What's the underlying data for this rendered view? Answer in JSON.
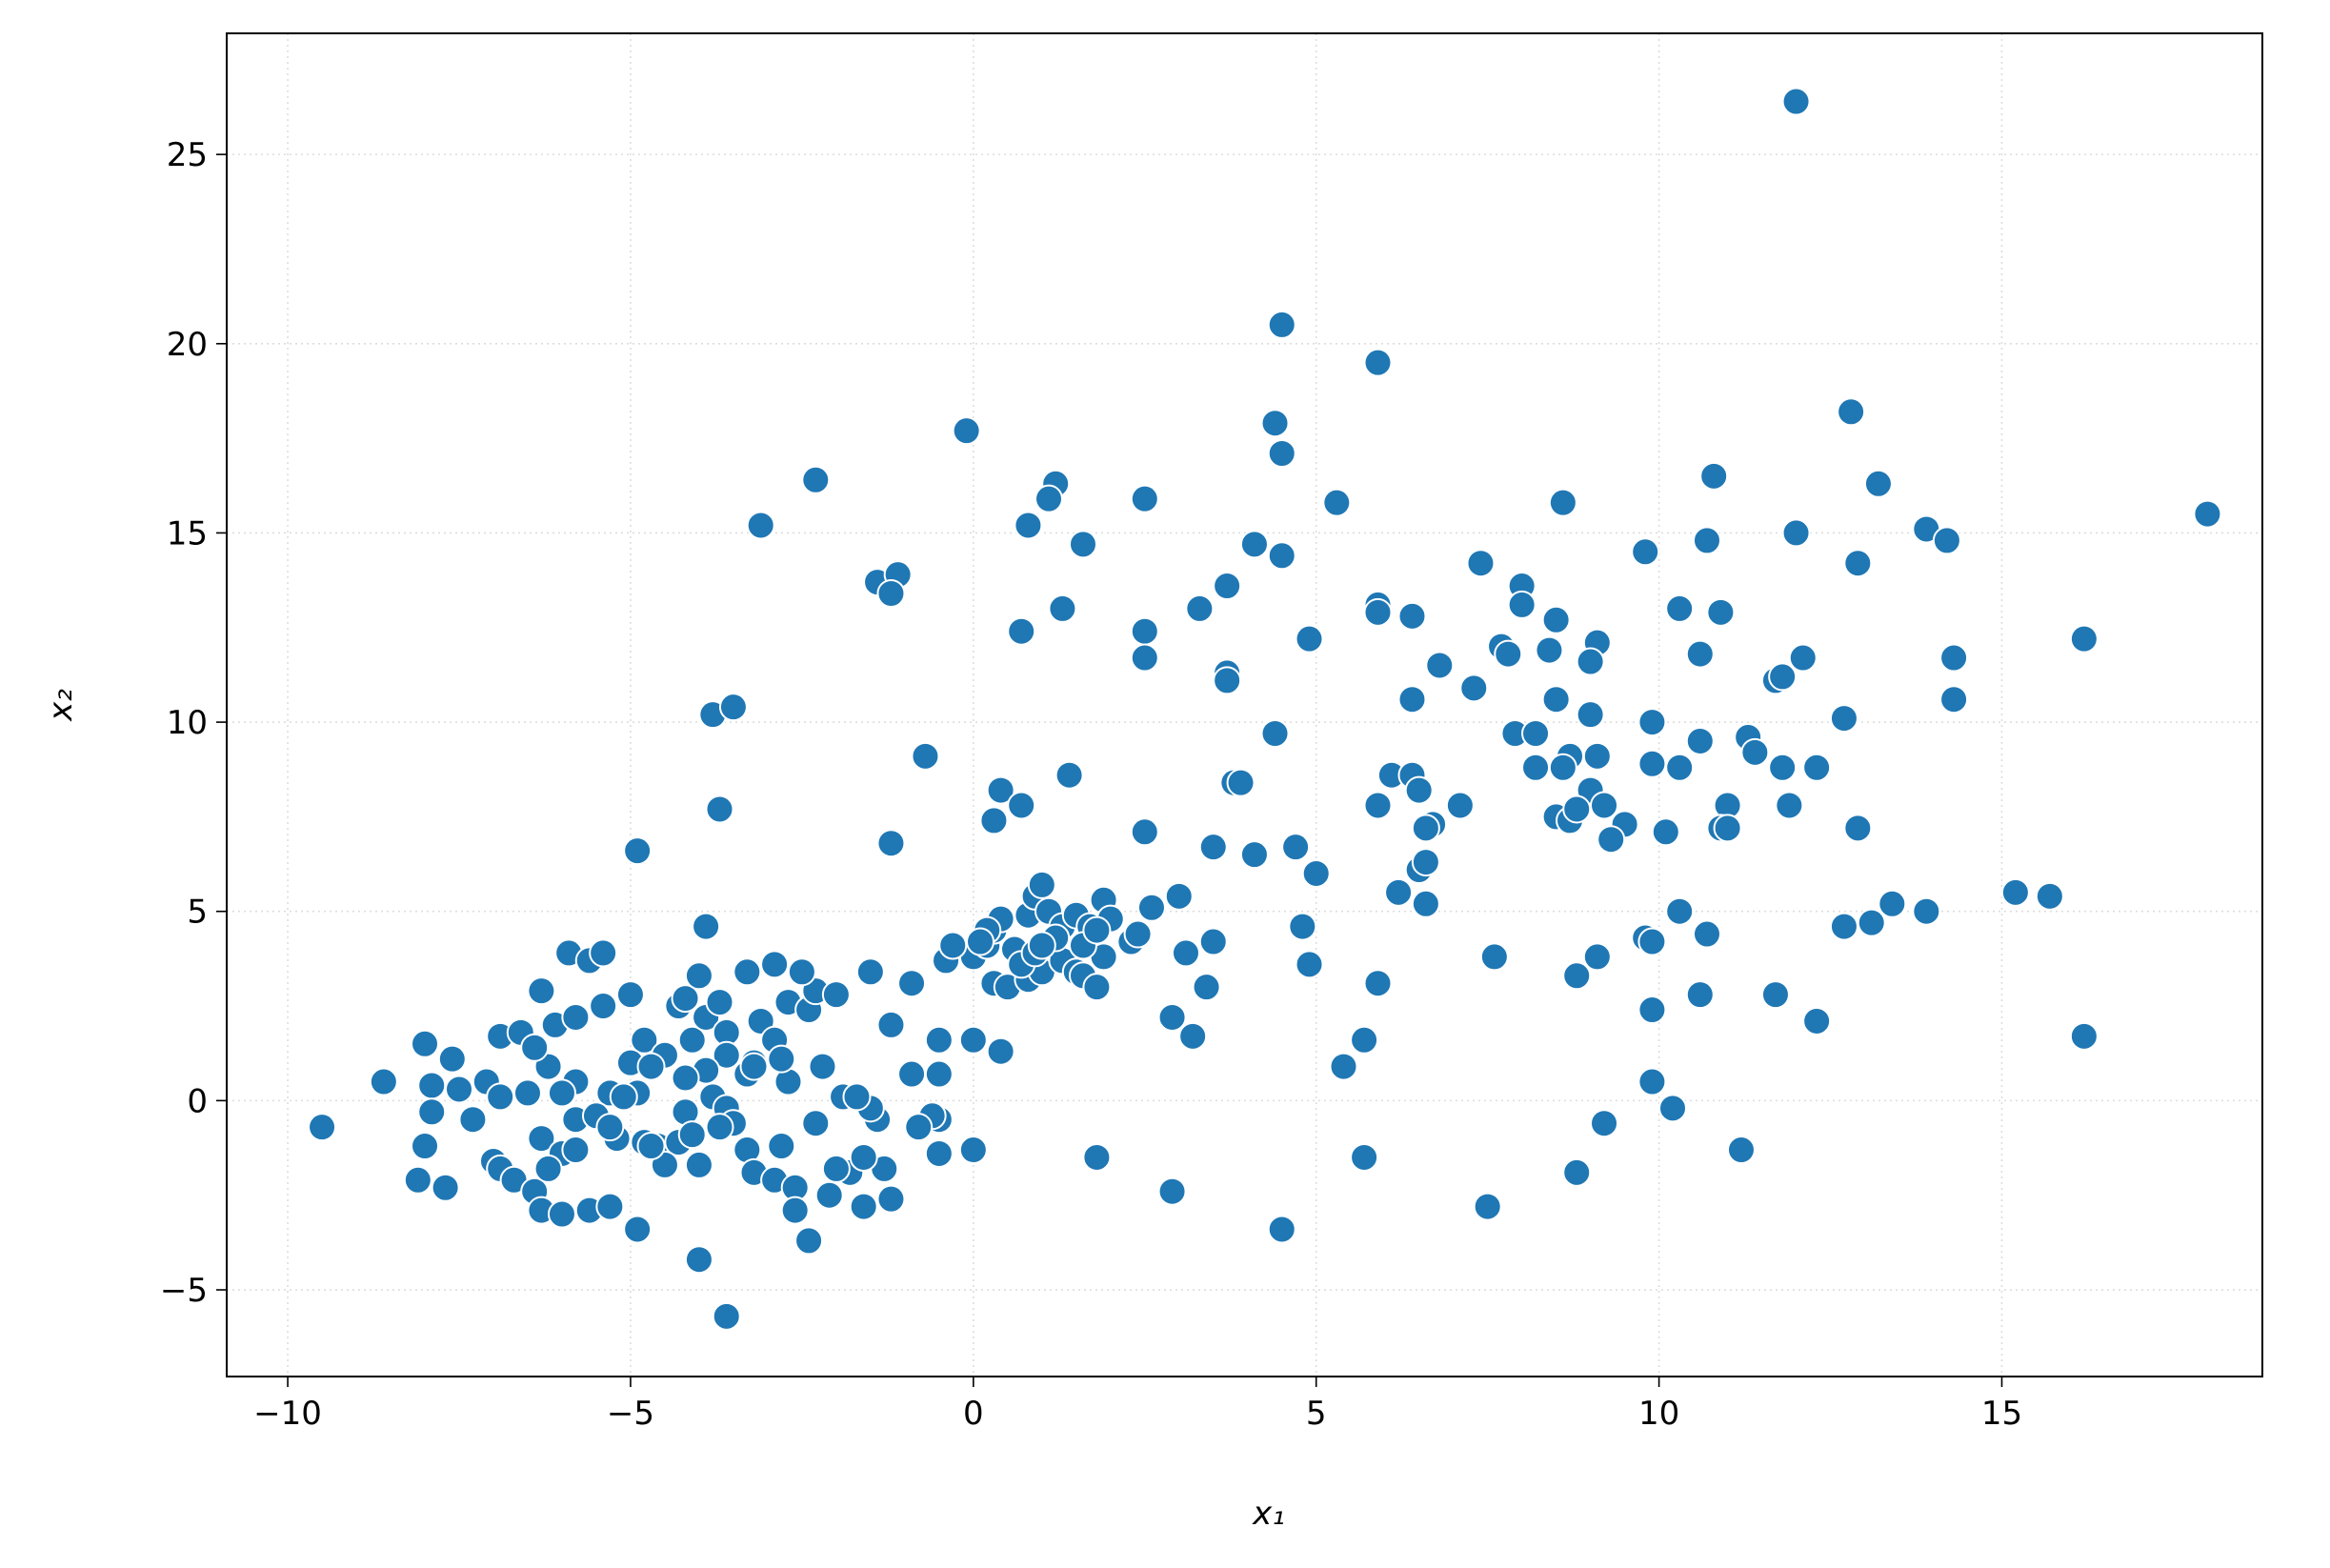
{
  "chart_data": {
    "type": "scatter",
    "x_label": "x₁",
    "y_label": "x₂",
    "color": "#1f77b4",
    "edge_color": "#ffffff",
    "grid": true,
    "xlim": [
      -10.89,
      18.8
    ],
    "ylim": [
      -7.29,
      28.2
    ],
    "xticks": [
      {
        "value": -10,
        "label": "−10"
      },
      {
        "value": -5,
        "label": "−5"
      },
      0,
      5,
      10,
      15
    ],
    "yticks": [
      {
        "value": -5,
        "label": "−5"
      },
      0,
      5,
      10,
      15,
      20,
      25
    ],
    "x": [
      12.0,
      4.5,
      5.9,
      -0.1,
      4.4,
      4.5,
      12.8,
      -2.3,
      1.2,
      1.1,
      10.8,
      13.2,
      -3.1,
      0.8,
      2.5,
      5.3,
      8.6,
      13.9,
      14.2,
      12.0,
      10.7,
      9.8,
      18.0,
      1.6,
      4.1,
      4.5,
      7.4,
      12.9,
      -1.4,
      -1.1,
      -1.2,
      3.7,
      8.0,
      8.0,
      1.3,
      3.3,
      5.9,
      5.9,
      6.4,
      8.5,
      10.3,
      10.9,
      0.7,
      2.5,
      4.9,
      9.1,
      16.2,
      7.7,
      7.8,
      8.4,
      9.0,
      10.6,
      12.1,
      14.3,
      2.5,
      3.7,
      3.7,
      6.8,
      11.7,
      11.8,
      6.4,
      7.3,
      8.5,
      14.3,
      -3.8,
      -3.5,
      12.7,
      9.0,
      9.9,
      4.4,
      7.9,
      8.2,
      8.7,
      9.1,
      10.6,
      11.3,
      11.4,
      -0.7,
      1.4,
      6.1,
      6.4,
      8.2,
      8.6,
      9.9,
      10.3,
      11.8,
      12.3,
      0.4,
      3.8,
      3.9,
      6.5,
      9.0,
      9.2,
      11.0,
      0.7,
      5.9,
      7.1,
      11.9,
      -3.7,
      0.3,
      2.5,
      6.7,
      6.6,
      8.5,
      8.7,
      8.8,
      9.5,
      10.1,
      10.9,
      11.0,
      12.9,
      9.3,
      3.5,
      4.1,
      4.7,
      -4.9,
      -1.2,
      6.5,
      6.6,
      5.0,
      15.2,
      15.7,
      6.2,
      6.6,
      3.0,
      2.6,
      10.3,
      13.4,
      13.9,
      13.1,
      12.7,
      4.8,
      9.8,
      9.9,
      10.7,
      3.5,
      3.1,
      7.6,
      9.1,
      4.9,
      8.8,
      3.4,
      5.9,
      10.6,
      11.7,
      9.9,
      12.3,
      2.9,
      3.2,
      5.7,
      16.2,
      5.4,
      9.9,
      10.2,
      9.2,
      11.2,
      5.7,
      1.8,
      8.8,
      2.9,
      7.5,
      4.5,
      0.0,
      0.0,
      0.2,
      0.3,
      0.4,
      0.6,
      0.8,
      0.9,
      1.0,
      1.1,
      1.3,
      1.5,
      1.7,
      1.9,
      2.0,
      2.3,
      2.4,
      0.3,
      0.5,
      0.8,
      1.0,
      1.3,
      1.5,
      1.6,
      1.8,
      1.9,
      0.7,
      0.9,
      1.2,
      1.6,
      1.8,
      -0.4,
      -0.3,
      0.2,
      1.0,
      0.1,
      -9.5,
      -8.6,
      -8.0,
      -7.9,
      -7.9,
      -8.0,
      -8.1,
      -7.7,
      -7.6,
      -7.5,
      -7.3,
      -7.1,
      -6.9,
      -6.6,
      -6.9,
      -7.0,
      -6.9,
      -6.7,
      -6.4,
      -6.3,
      -6.0,
      -5.6,
      -5.3,
      -4.9,
      -6.3,
      -6.1,
      -5.9,
      -5.6,
      -5.4,
      -5.8,
      -5.4,
      -5.0,
      -4.8,
      -5.0,
      -5.3,
      -5.8,
      -6.2,
      -6.4,
      -6.5,
      -6.0,
      -5.8,
      -5.5,
      -5.2,
      -4.8,
      -4.6,
      -4.3,
      -6.3,
      -6.0,
      -6.2,
      -5.8,
      -4.9,
      -5.1,
      -4.5,
      -4.7,
      -4.3,
      -4.2,
      -4.0,
      -3.9,
      -4.1,
      -3.9,
      -3.6,
      -3.7,
      -3.3,
      -2.9,
      -3.1,
      -2.9,
      -3.2,
      -3.6,
      -3.9,
      -4.2,
      -3.8,
      -3.6,
      -3.3,
      -3.5,
      -3.7,
      -4.2,
      -4.5,
      -4.0,
      -3.3,
      -3.2,
      -2.9,
      -2.8,
      -2.6,
      -2.6,
      -2.4,
      -2.1,
      -1.8,
      -1.6,
      -1.2,
      -1.3,
      -1.6,
      -2.0,
      -2.3,
      -2.2,
      -2.7,
      -2.8,
      -2.7,
      -2.4,
      -2.3,
      -2.5,
      -2.0,
      -1.5,
      -1.2,
      -0.9,
      -0.9,
      -0.5,
      -0.5,
      0.0,
      0.4,
      -0.5,
      -0.6,
      -0.8,
      -0.5,
      -1.4,
      -1.5,
      -1.9,
      -1.7,
      -4.0,
      -3.6,
      -4.7,
      -5.3,
      -4.1,
      -3.2
    ],
    "values": [
      26.4,
      20.5,
      19.5,
      17.7,
      17.9,
      17.1,
      18.2,
      16.4,
      16.3,
      15.9,
      16.5,
      16.3,
      15.2,
      15.2,
      15.9,
      15.8,
      15.8,
      15.1,
      14.8,
      15.0,
      14.8,
      14.5,
      15.5,
      14.7,
      14.7,
      14.4,
      14.2,
      14.2,
      13.7,
      13.9,
      13.4,
      13.6,
      13.6,
      13.1,
      13.0,
      13.0,
      13.1,
      12.9,
      12.8,
      12.7,
      13.0,
      12.9,
      12.4,
      12.4,
      12.2,
      12.1,
      12.2,
      12.0,
      11.8,
      11.9,
      11.6,
      11.8,
      11.7,
      11.7,
      11.7,
      11.3,
      11.1,
      11.5,
      11.1,
      11.2,
      10.6,
      10.9,
      10.6,
      10.6,
      10.2,
      10.4,
      10.1,
      10.2,
      10.0,
      9.7,
      9.7,
      9.7,
      9.1,
      9.1,
      9.5,
      9.6,
      9.2,
      9.1,
      8.6,
      8.6,
      8.6,
      8.8,
      8.8,
      8.9,
      8.8,
      8.8,
      8.8,
      8.2,
      8.4,
      8.4,
      8.2,
      8.2,
      7.8,
      7.8,
      7.8,
      7.8,
      7.8,
      7.8,
      7.7,
      7.4,
      7.1,
      7.3,
      7.2,
      7.5,
      7.4,
      7.7,
      7.3,
      7.1,
      7.2,
      7.2,
      7.2,
      6.9,
      6.7,
      6.5,
      6.7,
      6.6,
      6.8,
      6.1,
      6.3,
      6.0,
      5.5,
      5.4,
      5.5,
      5.2,
      5.4,
      5.1,
      5.0,
      5.2,
      5.0,
      4.7,
      4.6,
      4.6,
      4.3,
      4.2,
      4.4,
      4.2,
      3.9,
      3.8,
      3.8,
      3.6,
      3.3,
      3.0,
      3.1,
      2.8,
      2.8,
      2.4,
      2.1,
      2.2,
      1.7,
      1.6,
      1.7,
      0.9,
      0.5,
      -0.2,
      -0.6,
      -1.3,
      -1.5,
      -1.5,
      -1.9,
      -2.4,
      -2.8,
      -3.4,
      -1.3,
      3.8,
      4.1,
      4.5,
      4.8,
      4.0,
      4.9,
      5.4,
      5.7,
      5.0,
      4.6,
      4.9,
      4.6,
      5.3,
      4.8,
      4.2,
      4.4,
      3.1,
      3.0,
      3.2,
      3.4,
      3.7,
      3.4,
      3.3,
      3.0,
      3.8,
      3.6,
      3.9,
      4.3,
      4.1,
      4.5,
      3.7,
      4.1,
      4.5,
      4.1,
      4.2,
      -0.7,
      0.5,
      1.5,
      0.4,
      -0.3,
      -1.2,
      -2.1,
      -2.3,
      1.1,
      0.3,
      -0.5,
      0.5,
      1.7,
      1.8,
      0.1,
      -1.6,
      -1.8,
      -2.1,
      -2.4,
      -2.9,
      -3.0,
      -2.9,
      -2.8,
      -3.4,
      2.9,
      2.0,
      3.9,
      3.7,
      3.9,
      2.2,
      2.5,
      2.8,
      1.6,
      1.0,
      0.2,
      0.5,
      0.9,
      1.4,
      0.2,
      0.2,
      -0.5,
      -0.4,
      -1.0,
      -1.1,
      -1.2,
      -1.1,
      -1.0,
      -1.4,
      -1.8,
      -1.3,
      0.2,
      0.1,
      1.2,
      0.9,
      2.5,
      2.7,
      3.3,
      4.6,
      1.6,
      2.2,
      1.8,
      2.6,
      3.4,
      3.6,
      2.1,
      1.6,
      1.0,
      1.2,
      0.8,
      0.6,
      0.1,
      -0.2,
      0.7,
      -0.6,
      -0.7,
      -0.3,
      -1.7,
      -1.7,
      -1.3,
      -1.9,
      -2.1,
      -1.2,
      -2.3,
      -2.9,
      -3.7,
      -2.5,
      -1.9,
      -2.8,
      -2.6,
      -1.8,
      -1.5,
      -1.8,
      -0.6,
      0.9,
      0.5,
      1.1,
      2.6,
      2.4,
      2.9,
      3.4,
      2.8,
      3.4,
      2.0,
      3.1,
      0.7,
      0.7,
      1.6,
      1.6,
      1.3,
      -0.5,
      -0.4,
      -0.7,
      -1.4,
      -0.5,
      -0.2,
      0.1,
      0.1,
      -4.2,
      -5.7,
      -1.2,
      -0.7,
      -0.9,
      0.9
    ]
  }
}
